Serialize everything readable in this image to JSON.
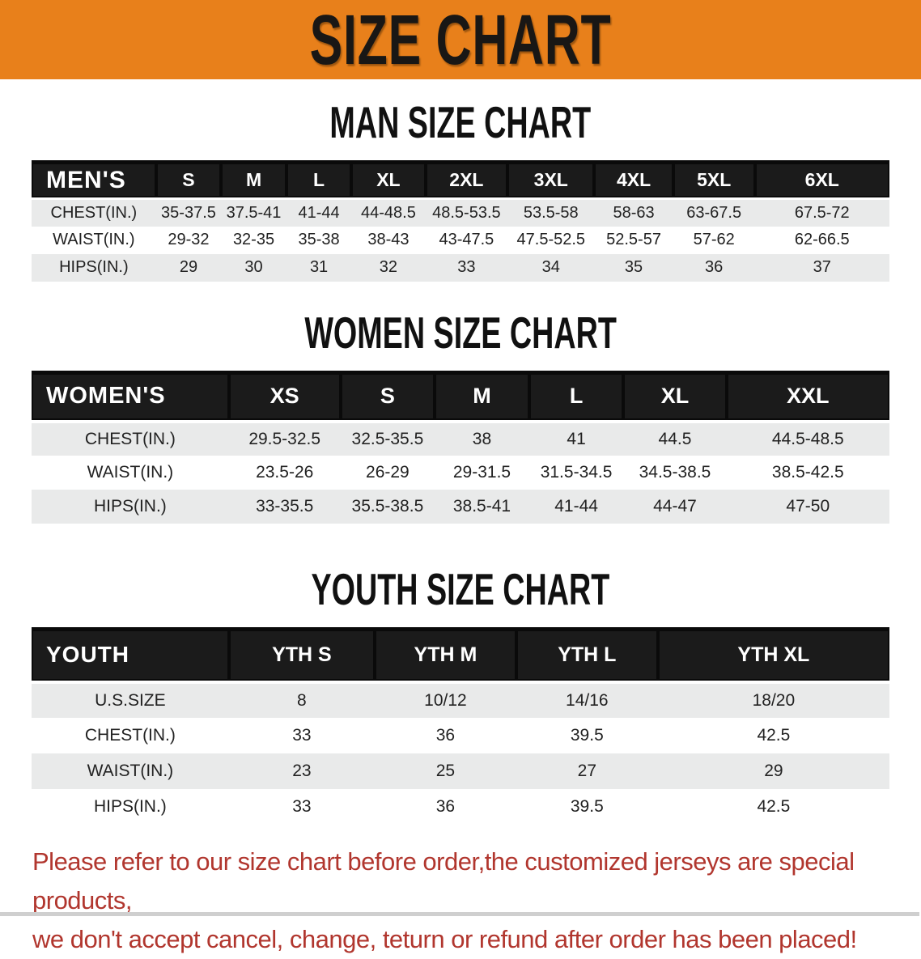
{
  "banner": {
    "title": "SIZE CHART",
    "background_color": "#E8801B",
    "text_color": "#191715"
  },
  "sections": [
    {
      "heading": "MAN SIZE CHART",
      "table": {
        "header": [
          "MEN'S",
          "S",
          "M",
          "L",
          "XL",
          "2XL",
          "3XL",
          "4XL",
          "5XL",
          "6XL"
        ],
        "rows": [
          [
            "CHEST(IN.)",
            "35-37.5",
            "37.5-41",
            "41-44",
            "44-48.5",
            "48.5-53.5",
            "53.5-58",
            "58-63",
            "63-67.5",
            "67.5-72"
          ],
          [
            "WAIST(IN.)",
            "29-32",
            "32-35",
            "35-38",
            "38-43",
            "43-47.5",
            "47.5-52.5",
            "52.5-57",
            "57-62",
            "62-66.5"
          ],
          [
            "HIPS(IN.)",
            "29",
            "30",
            "31",
            "32",
            "33",
            "34",
            "35",
            "36",
            "37"
          ]
        ]
      }
    },
    {
      "heading": "WOMEN SIZE CHART",
      "table": {
        "header": [
          "WOMEN'S",
          "XS",
          "S",
          "M",
          "L",
          "XL",
          "XXL"
        ],
        "rows": [
          [
            "CHEST(IN.)",
            "29.5-32.5",
            "32.5-35.5",
            "38",
            "41",
            "44.5",
            "44.5-48.5"
          ],
          [
            "WAIST(IN.)",
            "23.5-26",
            "26-29",
            "29-31.5",
            "31.5-34.5",
            "34.5-38.5",
            "38.5-42.5"
          ],
          [
            "HIPS(IN.)",
            "33-35.5",
            "35.5-38.5",
            "38.5-41",
            "41-44",
            "44-47",
            "47-50"
          ]
        ]
      }
    },
    {
      "heading": "YOUTH SIZE CHART",
      "table": {
        "header": [
          "YOUTH",
          "YTH S",
          "YTH M",
          "YTH L",
          "YTH XL"
        ],
        "rows": [
          [
            "U.S.SIZE",
            "8",
            "10/12",
            "14/16",
            "18/20"
          ],
          [
            "CHEST(IN.)",
            "33",
            "36",
            "39.5",
            "42.5"
          ],
          [
            "WAIST(IN.)",
            "23",
            "25",
            "27",
            "29"
          ],
          [
            "HIPS(IN.)",
            "33",
            "36",
            "39.5",
            "42.5"
          ]
        ]
      }
    }
  ],
  "disclaimer": {
    "line1": "Please refer to our size chart before order,the customized jerseys are special products,",
    "line2": "we don't accept cancel, change, teturn or refund after order has been placed!",
    "text_color": "#B1362E"
  }
}
